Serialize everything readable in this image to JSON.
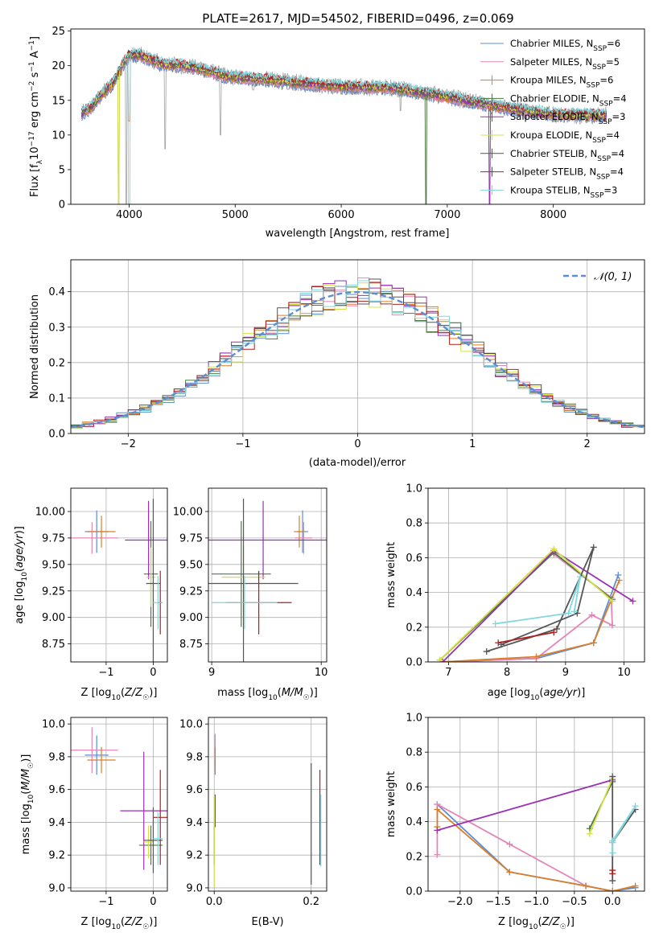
{
  "figure_title": "PLATE=2617, MJD=54502, FIBERID=0496, z=0.069",
  "colors": {
    "Chabrier MILES": "#5b8ed6",
    "Salpeter MILES": "#e585b5",
    "Kroupa MILES": "#d97f2a",
    "Chabrier ELODIE": "#4f7a42",
    "Salpeter ELODIE": "#9b2fb5",
    "Kroupa ELODIE": "#d4e048",
    "Chabrier STELIB": "#555555",
    "Salpeter STELIB": "#b01e1e",
    "Kroupa STELIB": "#7fd8df",
    "data": "#aaaaaa",
    "gauss": "#5b8ed6"
  },
  "chart_data": [
    {
      "id": "spectrum",
      "type": "line",
      "xlabel": "wavelength [Angstrom, rest frame]",
      "ylabel": "Flux [f_λ 10^-17 erg cm^-2 s^-1 A^-1]",
      "xlim": [
        3450,
        8860
      ],
      "ylim": [
        0,
        25.3
      ],
      "xticks": [
        4000,
        5000,
        6000,
        7000,
        8000
      ],
      "yticks": [
        0,
        5,
        10,
        15,
        20,
        25
      ],
      "legend_position": "top-right",
      "legend": [
        {
          "label": "Chabrier MILES, N",
          "sub": "SSP",
          "suffix": "=6",
          "key": "Chabrier MILES"
        },
        {
          "label": "Salpeter MILES, N",
          "sub": "SSP",
          "suffix": "=5",
          "key": "Salpeter MILES"
        },
        {
          "label": "Kroupa MILES, N",
          "sub": "SSP",
          "suffix": "=6",
          "key": "Kroupa MILES"
        },
        {
          "label": "Chabrier ELODIE, N",
          "sub": "SSP",
          "suffix": "=4",
          "key": "Chabrier ELODIE"
        },
        {
          "label": "Salpeter ELODIE, N",
          "sub": "SSP",
          "suffix": "=3",
          "key": "Salpeter ELODIE"
        },
        {
          "label": "Kroupa ELODIE, N",
          "sub": "SSP",
          "suffix": "=4",
          "key": "Kroupa ELODIE"
        },
        {
          "label": "Chabrier STELIB, N",
          "sub": "SSP",
          "suffix": "=4",
          "key": "Chabrier STELIB"
        },
        {
          "label": "Salpeter STELIB, N",
          "sub": "SSP",
          "suffix": "=4",
          "key": "Salpeter STELIB"
        },
        {
          "label": "Kroupa STELIB, N",
          "sub": "SSP",
          "suffix": "=3",
          "key": "Kroupa STELIB"
        }
      ],
      "continuum": [
        [
          3550,
          13
        ],
        [
          3640,
          14
        ],
        [
          3750,
          16
        ],
        [
          3850,
          17.5
        ],
        [
          3950,
          20.5
        ],
        [
          4000,
          21.5
        ],
        [
          4100,
          21.5
        ],
        [
          4300,
          20.3
        ],
        [
          4500,
          20
        ],
        [
          4700,
          19.5
        ],
        [
          4900,
          18.5
        ],
        [
          5100,
          18.2
        ],
        [
          5300,
          18
        ],
        [
          5600,
          17.5
        ],
        [
          6000,
          17
        ],
        [
          6500,
          16.8
        ],
        [
          7000,
          15.5
        ],
        [
          7500,
          14
        ],
        [
          8000,
          13
        ],
        [
          8500,
          12.8
        ]
      ],
      "dips": [
        [
          3900,
          0
        ],
        [
          3975,
          0
        ],
        [
          4340,
          8
        ],
        [
          4860,
          10
        ],
        [
          5170,
          16.5
        ],
        [
          6560,
          13.5
        ],
        [
          6800,
          0
        ],
        [
          7400,
          0
        ]
      ]
    },
    {
      "id": "residuals",
      "type": "histogram",
      "xlabel": "(data-model)/error",
      "ylabel": "Normed distribution",
      "xlim": [
        -2.5,
        2.5
      ],
      "ylim": [
        0,
        0.49
      ],
      "xticks": [
        -2,
        -1,
        0,
        1,
        2
      ],
      "yticks": [
        0.0,
        0.1,
        0.2,
        0.3,
        0.4
      ],
      "legend": "𝒩(0, 1)",
      "legend_position": "top-right",
      "bin_width": 0.1,
      "series_keys": [
        "Chabrier MILES",
        "Salpeter MILES",
        "Kroupa MILES",
        "Chabrier ELODIE",
        "Salpeter ELODIE",
        "Kroupa ELODIE",
        "Chabrier STELIB",
        "Salpeter STELIB",
        "Kroupa STELIB"
      ]
    },
    {
      "id": "age_vs_Z",
      "type": "scatter",
      "xlabel": "Z [log10(Z/Z☉)]",
      "ylabel": "age [log10(age/yr)]",
      "xlim": [
        -1.75,
        0.3
      ],
      "ylim": [
        8.58,
        10.22
      ],
      "xticks": [
        -1,
        0
      ],
      "yticks": [
        8.75,
        9.0,
        9.25,
        9.5,
        9.75,
        10.0
      ],
      "points": [
        {
          "key": "Chabrier MILES",
          "x": -1.2,
          "xerr": 0.25,
          "y": 9.81,
          "yerr": 0.2
        },
        {
          "key": "Salpeter MILES",
          "x": -1.3,
          "xerr": 0.55,
          "y": 9.75,
          "yerr": 0.15
        },
        {
          "key": "Kroupa MILES",
          "x": -1.1,
          "xerr": 0.3,
          "y": 9.81,
          "yerr": 0.15
        },
        {
          "key": "Chabrier ELODIE",
          "x": -0.05,
          "xerr": 0.15,
          "y": 9.41,
          "yerr": 0.5
        },
        {
          "key": "Salpeter ELODIE",
          "x": -0.1,
          "xerr": 0.5,
          "y": 9.73,
          "yerr": 0.37
        },
        {
          "key": "Kroupa ELODIE",
          "x": -0.05,
          "xerr": 0.1,
          "y": 9.38,
          "yerr": 0.28
        },
        {
          "key": "Chabrier STELIB",
          "x": 0.0,
          "xerr": 0.15,
          "y": 9.32,
          "yerr": 0.8
        },
        {
          "key": "Salpeter STELIB",
          "x": 0.15,
          "xerr": 0.05,
          "y": 9.14,
          "yerr": 0.3
        },
        {
          "key": "Kroupa STELIB",
          "x": 0.1,
          "xerr": 0.1,
          "y": 9.14,
          "yerr": 0.25
        }
      ]
    },
    {
      "id": "age_vs_mass",
      "type": "scatter",
      "xlabel": "mass [log10(M/M☉)]",
      "ylabel": "",
      "xlim": [
        8.97,
        10.05
      ],
      "ylim": [
        8.58,
        10.22
      ],
      "xticks": [
        9,
        10
      ],
      "yticks": [
        8.75,
        9.0,
        9.25,
        9.5,
        9.75,
        10.0
      ],
      "points": [
        {
          "key": "Chabrier MILES",
          "x": 9.83,
          "xerr": 0.05,
          "y": 9.81,
          "yerr": 0.2
        },
        {
          "key": "Salpeter MILES",
          "x": 9.84,
          "xerr": 0.08,
          "y": 9.75,
          "yerr": 0.15
        },
        {
          "key": "Kroupa MILES",
          "x": 9.8,
          "xerr": 0.05,
          "y": 9.81,
          "yerr": 0.15
        },
        {
          "key": "Chabrier ELODIE",
          "x": 9.27,
          "xerr": 0.27,
          "y": 9.41,
          "yerr": 0.5
        },
        {
          "key": "Salpeter ELODIE",
          "x": 9.47,
          "xerr": 0.6,
          "y": 9.73,
          "yerr": 0.37
        },
        {
          "key": "Kroupa ELODIE",
          "x": 9.29,
          "xerr": 0.2,
          "y": 9.38,
          "yerr": 0.28
        },
        {
          "key": "Chabrier STELIB",
          "x": 9.29,
          "xerr": 0.5,
          "y": 9.32,
          "yerr": 0.8
        },
        {
          "key": "Salpeter STELIB",
          "x": 9.43,
          "xerr": 0.3,
          "y": 9.14,
          "yerr": 0.3
        },
        {
          "key": "Kroupa STELIB",
          "x": 9.3,
          "xerr": 0.3,
          "y": 9.14,
          "yerr": 0.25
        }
      ]
    },
    {
      "id": "weight_vs_age",
      "type": "line",
      "xlabel": "age [log10(age/yr)]",
      "ylabel": "mass weight",
      "xlim": [
        6.65,
        10.35
      ],
      "ylim": [
        0,
        1
      ],
      "xticks": [
        7,
        8,
        9,
        10
      ],
      "yticks": [
        0.0,
        0.2,
        0.4,
        0.6,
        0.8,
        1.0
      ],
      "series": [
        {
          "key": "Chabrier MILES",
          "x": [
            6.9,
            8.5,
            9.48,
            9.9
          ],
          "y": [
            0.0,
            0.02,
            0.11,
            0.5
          ]
        },
        {
          "key": "Salpeter MILES",
          "x": [
            6.9,
            8.5,
            9.45,
            9.8,
            9.78,
            8.8
          ],
          "y": [
            0.0,
            0.02,
            0.27,
            0.21,
            0.37,
            0.62
          ]
        },
        {
          "key": "Kroupa MILES",
          "x": [
            6.9,
            8.5,
            9.48,
            9.92
          ],
          "y": [
            0.0,
            0.03,
            0.11,
            0.47
          ]
        },
        {
          "key": "Chabrier ELODIE",
          "x": [
            6.85,
            8.8,
            9.8
          ],
          "y": [
            0.01,
            0.63,
            0.36
          ]
        },
        {
          "key": "Salpeter ELODIE",
          "x": [
            10.15,
            8.8,
            6.9
          ],
          "y": [
            0.35,
            0.64,
            0.0
          ]
        },
        {
          "key": "Kroupa ELODIE",
          "x": [
            6.85,
            8.8,
            9.8
          ],
          "y": [
            0.01,
            0.65,
            0.35
          ]
        },
        {
          "key": "Chabrier STELIB",
          "x": [
            7.65,
            8.85,
            9.48,
            9.2,
            7.9
          ],
          "y": [
            0.06,
            0.19,
            0.66,
            0.28,
            0.1
          ]
        },
        {
          "key": "Salpeter STELIB",
          "x": [
            7.85,
            8.8
          ],
          "y": [
            0.11,
            0.17
          ]
        },
        {
          "key": "Kroupa STELIB",
          "x": [
            7.8,
            9.05,
            9.25,
            9.15
          ],
          "y": [
            0.22,
            0.28,
            0.49,
            0.29
          ]
        }
      ]
    },
    {
      "id": "mass_vs_Z",
      "type": "scatter",
      "xlabel": "Z [log10(Z/Z☉)]",
      "ylabel": "mass [log10(M/M☉)]",
      "xlim": [
        -1.75,
        0.3
      ],
      "ylim": [
        8.98,
        10.04
      ],
      "xticks": [
        -1,
        0
      ],
      "yticks": [
        9.0,
        9.2,
        9.4,
        9.6,
        9.8,
        10.0
      ],
      "points": [
        {
          "key": "Chabrier MILES",
          "x": -1.2,
          "xerr": 0.25,
          "y": 9.81,
          "yerr": 0.12
        },
        {
          "key": "Salpeter MILES",
          "x": -1.3,
          "xerr": 0.55,
          "y": 9.84,
          "yerr": 0.14
        },
        {
          "key": "Kroupa MILES",
          "x": -1.1,
          "xerr": 0.3,
          "y": 9.78,
          "yerr": 0.08
        },
        {
          "key": "Chabrier ELODIE",
          "x": -0.05,
          "xerr": 0.25,
          "y": 9.26,
          "yerr": 0.12
        },
        {
          "key": "Salpeter ELODIE",
          "x": -0.2,
          "xerr": 0.5,
          "y": 9.47,
          "yerr": 0.36
        },
        {
          "key": "Kroupa ELODIE",
          "x": -0.1,
          "xerr": 0.1,
          "y": 9.28,
          "yerr": 0.1
        },
        {
          "key": "Chabrier STELIB",
          "x": 0.0,
          "xerr": 0.2,
          "y": 9.29,
          "yerr": 0.2
        },
        {
          "key": "Salpeter STELIB",
          "x": 0.15,
          "xerr": 0.15,
          "y": 9.43,
          "yerr": 0.29
        },
        {
          "key": "Kroupa STELIB",
          "x": 0.1,
          "xerr": 0.1,
          "y": 9.3,
          "yerr": 0.16
        }
      ]
    },
    {
      "id": "mass_vs_ebv",
      "type": "scatter",
      "xlabel": "E(B-V)",
      "ylabel": "",
      "xlim": [
        -0.012,
        0.232
      ],
      "ylim": [
        8.98,
        10.04
      ],
      "xticks": [
        0.0,
        0.2
      ],
      "yticks": [
        9.0,
        9.2,
        9.4,
        9.6,
        9.8,
        10.0
      ],
      "points": [
        {
          "key": "Chabrier MILES",
          "x": 0.002,
          "xerr": 0,
          "y": 9.81,
          "yerr": 0.12
        },
        {
          "key": "Salpeter MILES",
          "x": 0.002,
          "xerr": 0,
          "y": 9.84,
          "yerr": 0.1
        },
        {
          "key": "Kroupa MILES",
          "x": 0.002,
          "xerr": 0,
          "y": 9.78,
          "yerr": 0.08
        },
        {
          "key": "Chabrier ELODIE",
          "x": 0.0,
          "xerr": 0,
          "y": 9.26,
          "yerr": 0.12
        },
        {
          "key": "Salpeter ELODIE",
          "x": 0.002,
          "xerr": 0,
          "y": 9.47,
          "yerr": 0.1
        },
        {
          "key": "Kroupa ELODIE",
          "x": 0.0,
          "xerr": 0,
          "y": 9.28,
          "yerr": 0.28
        },
        {
          "key": "Chabrier STELIB",
          "x": 0.2,
          "xerr": 0,
          "y": 9.39,
          "yerr": 0.37
        },
        {
          "key": "Salpeter STELIB",
          "x": 0.218,
          "xerr": 0,
          "y": 9.43,
          "yerr": 0.29
        },
        {
          "key": "Kroupa STELIB",
          "x": 0.22,
          "xerr": 0,
          "y": 9.35,
          "yerr": 0.22
        }
      ]
    },
    {
      "id": "weight_vs_Z",
      "type": "line",
      "xlabel": "Z [log10(Z/Z☉)]",
      "ylabel": "mass weight",
      "xlim": [
        -2.42,
        0.42
      ],
      "ylim": [
        0,
        1
      ],
      "xticks": [
        -2.0,
        -1.5,
        -1.0,
        -0.5,
        0.0
      ],
      "yticks": [
        0.0,
        0.2,
        0.4,
        0.6,
        0.8,
        1.0
      ],
      "series": [
        {
          "key": "Chabrier MILES",
          "x": [
            -2.3,
            -1.35,
            -0.35,
            0.0,
            0.3
          ],
          "y": [
            0.5,
            0.11,
            0.03,
            0.0,
            0.02
          ]
        },
        {
          "key": "Salpeter MILES",
          "x": [
            -2.3,
            -2.3,
            -1.35,
            -0.35,
            0.0
          ],
          "y": [
            0.21,
            0.5,
            0.27,
            0.03,
            0.0
          ]
        },
        {
          "key": "Kroupa MILES",
          "x": [
            -2.3,
            -2.3,
            -1.35,
            -0.35,
            0.0,
            0.3
          ],
          "y": [
            0.37,
            0.47,
            0.11,
            0.03,
            0.0,
            0.03
          ]
        },
        {
          "key": "Chabrier ELODIE",
          "x": [
            -0.3,
            0.0
          ],
          "y": [
            0.36,
            0.63
          ]
        },
        {
          "key": "Salpeter ELODIE",
          "x": [
            -2.3,
            0.0
          ],
          "y": [
            0.35,
            0.64
          ]
        },
        {
          "key": "Kroupa ELODIE",
          "x": [
            -0.3,
            0.0
          ],
          "y": [
            0.33,
            0.65
          ]
        },
        {
          "key": "Chabrier STELIB",
          "x": [
            0.0,
            0.0,
            0.0,
            0.3
          ],
          "y": [
            0.06,
            0.66,
            0.28,
            0.47
          ]
        },
        {
          "key": "Salpeter STELIB",
          "x": [
            0.0,
            0.0
          ],
          "y": [
            0.1,
            0.12
          ]
        },
        {
          "key": "Kroupa STELIB",
          "x": [
            0.0,
            0.0,
            0.3,
            0.0
          ],
          "y": [
            0.22,
            0.28,
            0.49,
            0.29
          ]
        }
      ]
    }
  ]
}
